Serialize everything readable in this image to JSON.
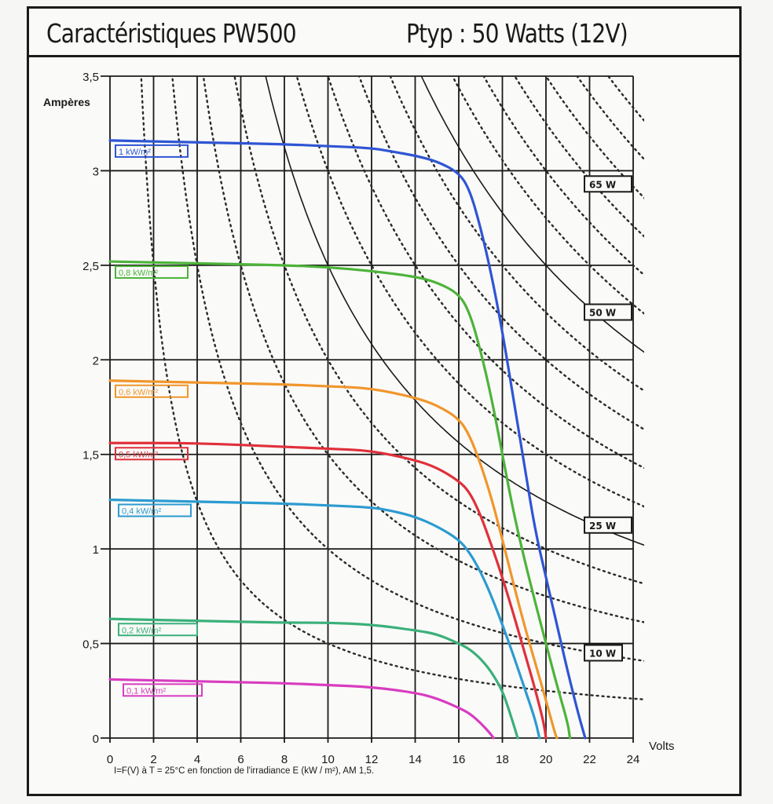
{
  "title": {
    "left": "Caractéristiques  PW500",
    "right": "Ptyp : 50 Watts  (12V)"
  },
  "chart_data": {
    "type": "line",
    "title": "Caractéristiques PW500 — Ptyp : 50 Watts (12V)",
    "xlabel": "Volts",
    "ylabel": "Ampères",
    "caption": "I=F(V) à T = 25°C  en fonction de l'irradiance E (kW / m²), AM 1,5.",
    "xlim": [
      0,
      24
    ],
    "ylim": [
      0,
      3.5
    ],
    "grid": true,
    "xticks": [
      0,
      2,
      4,
      6,
      8,
      10,
      12,
      14,
      16,
      18,
      20,
      22,
      24
    ],
    "xtick_labels": [
      "0",
      "2",
      "4",
      "6",
      "8",
      "10",
      "12",
      "14",
      "16",
      "18",
      "20",
      "22",
      "24"
    ],
    "yticks": [
      0,
      0.5,
      1,
      1.5,
      2,
      2.5,
      3,
      3.5
    ],
    "ytick_labels": [
      "0",
      "0,5",
      "1",
      "1,5",
      "2",
      "2,5",
      "3",
      "3,5"
    ],
    "series": [
      {
        "name": "1 kW/m²",
        "color": "#2f55d4",
        "label": "1 kW/m²",
        "points": [
          [
            0,
            3.16
          ],
          [
            4,
            3.15
          ],
          [
            8,
            3.14
          ],
          [
            10,
            3.13
          ],
          [
            12,
            3.12
          ],
          [
            13,
            3.1
          ],
          [
            14,
            3.08
          ],
          [
            15,
            3.05
          ],
          [
            16,
            2.99
          ],
          [
            16.5,
            2.9
          ],
          [
            17,
            2.7
          ],
          [
            17.5,
            2.45
          ],
          [
            18,
            2.15
          ],
          [
            18.5,
            1.8
          ],
          [
            19,
            1.45
          ],
          [
            19.5,
            1.1
          ],
          [
            20,
            0.85
          ],
          [
            20.5,
            0.6
          ],
          [
            21,
            0.35
          ],
          [
            21.5,
            0.12
          ],
          [
            21.8,
            0
          ]
        ]
      },
      {
        "name": "0.8 kW/m²",
        "color": "#4db33a",
        "label": "0,8 kW/m²",
        "points": [
          [
            0,
            2.52
          ],
          [
            4,
            2.51
          ],
          [
            8,
            2.5
          ],
          [
            10,
            2.49
          ],
          [
            12,
            2.47
          ],
          [
            14,
            2.44
          ],
          [
            15,
            2.41
          ],
          [
            16,
            2.35
          ],
          [
            16.5,
            2.25
          ],
          [
            17,
            2.05
          ],
          [
            17.5,
            1.8
          ],
          [
            18,
            1.5
          ],
          [
            18.5,
            1.2
          ],
          [
            19,
            0.95
          ],
          [
            19.5,
            0.72
          ],
          [
            20,
            0.5
          ],
          [
            20.5,
            0.28
          ],
          [
            21,
            0.08
          ],
          [
            21.1,
            0
          ]
        ]
      },
      {
        "name": "0.6 kW/m²",
        "color": "#f0962c",
        "label": "0,6 kW/m²",
        "points": [
          [
            0,
            1.89
          ],
          [
            4,
            1.88
          ],
          [
            8,
            1.87
          ],
          [
            10,
            1.86
          ],
          [
            12,
            1.85
          ],
          [
            14,
            1.8
          ],
          [
            15,
            1.76
          ],
          [
            16,
            1.69
          ],
          [
            16.5,
            1.6
          ],
          [
            17,
            1.45
          ],
          [
            17.5,
            1.27
          ],
          [
            18,
            1.05
          ],
          [
            18.5,
            0.82
          ],
          [
            19,
            0.6
          ],
          [
            19.5,
            0.4
          ],
          [
            20,
            0.2
          ],
          [
            20.4,
            0.03
          ],
          [
            20.5,
            0
          ]
        ]
      },
      {
        "name": "0.5 kW/m²",
        "color": "#e0303a",
        "label": "0,5 kW/m²",
        "points": [
          [
            0,
            1.56
          ],
          [
            4,
            1.56
          ],
          [
            8,
            1.54
          ],
          [
            10,
            1.53
          ],
          [
            12,
            1.52
          ],
          [
            14,
            1.47
          ],
          [
            15,
            1.43
          ],
          [
            16,
            1.36
          ],
          [
            16.5,
            1.3
          ],
          [
            17,
            1.18
          ],
          [
            17.5,
            1.02
          ],
          [
            18,
            0.85
          ],
          [
            18.5,
            0.66
          ],
          [
            19,
            0.46
          ],
          [
            19.5,
            0.26
          ],
          [
            19.9,
            0.08
          ],
          [
            20,
            0
          ]
        ]
      },
      {
        "name": "0.4 kW/m²",
        "color": "#2c9bd0",
        "label": "0,4 kW/m²",
        "points": [
          [
            0,
            1.26
          ],
          [
            4,
            1.25
          ],
          [
            8,
            1.24
          ],
          [
            10,
            1.23
          ],
          [
            12,
            1.22
          ],
          [
            13,
            1.2
          ],
          [
            14,
            1.17
          ],
          [
            15,
            1.12
          ],
          [
            16,
            1.05
          ],
          [
            16.5,
            0.98
          ],
          [
            17,
            0.88
          ],
          [
            17.5,
            0.75
          ],
          [
            18,
            0.6
          ],
          [
            18.5,
            0.44
          ],
          [
            19,
            0.27
          ],
          [
            19.5,
            0.1
          ],
          [
            19.7,
            0
          ]
        ]
      },
      {
        "name": "0.2 kW/m²",
        "color": "#3bb07a",
        "label": "0,2 kW/m²",
        "points": [
          [
            0,
            0.63
          ],
          [
            4,
            0.62
          ],
          [
            8,
            0.61
          ],
          [
            10,
            0.61
          ],
          [
            12,
            0.6
          ],
          [
            14,
            0.57
          ],
          [
            15,
            0.55
          ],
          [
            16,
            0.5
          ],
          [
            16.5,
            0.47
          ],
          [
            17,
            0.42
          ],
          [
            17.5,
            0.35
          ],
          [
            18,
            0.25
          ],
          [
            18.3,
            0.15
          ],
          [
            18.6,
            0.04
          ],
          [
            18.7,
            0
          ]
        ]
      },
      {
        "name": "0.1 kW/m²",
        "color": "#d83cc0",
        "label": "0,1 kW/m²",
        "points": [
          [
            0,
            0.31
          ],
          [
            4,
            0.3
          ],
          [
            8,
            0.29
          ],
          [
            10,
            0.28
          ],
          [
            12,
            0.27
          ],
          [
            14,
            0.24
          ],
          [
            15,
            0.21
          ],
          [
            16,
            0.16
          ],
          [
            16.5,
            0.13
          ],
          [
            17,
            0.08
          ],
          [
            17.4,
            0.03
          ],
          [
            17.6,
            0
          ]
        ]
      }
    ],
    "iso_power": {
      "solid_watts": [
        25,
        50
      ],
      "dotted_watts": [
        5,
        10,
        15,
        20,
        30,
        35,
        40,
        45,
        55,
        60,
        65,
        70,
        75,
        80
      ],
      "labels": [
        {
          "text": "65 W",
          "watts": 65
        },
        {
          "text": "50 W",
          "watts": 50
        },
        {
          "text": "25 W",
          "watts": 25
        },
        {
          "text": "10 W",
          "watts": 10
        }
      ]
    }
  }
}
